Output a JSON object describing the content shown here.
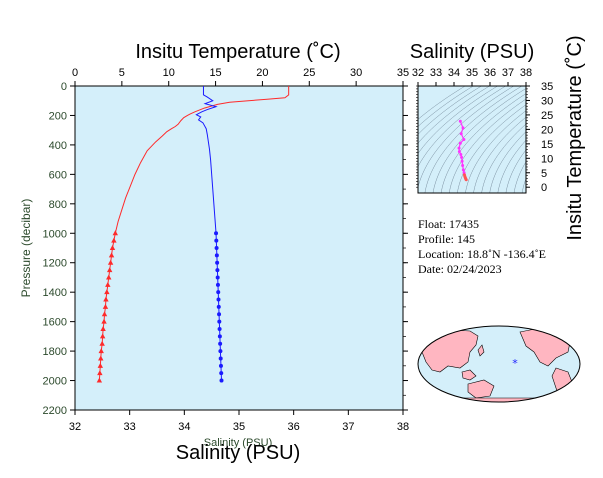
{
  "chart_data": [
    {
      "type": "line",
      "title_top": "Insitu Temperature (˚C)",
      "xlabel_bottom": "Salinity (PSU)",
      "xlabel_bottom_ghost": "Salinity (PSU)",
      "ylabel": "Pressure (decibar)",
      "temperature_axis": {
        "range": [
          0,
          35
        ],
        "ticks": [
          "0",
          "5",
          "10",
          "15",
          "20",
          "25",
          "30",
          "35"
        ]
      },
      "salinity_axis": {
        "range": [
          32,
          38
        ],
        "ticks": [
          "32",
          "33",
          "34",
          "35",
          "36",
          "37",
          "38"
        ]
      },
      "pressure_axis": {
        "range": [
          0,
          2200
        ],
        "ticks": [
          "0",
          "200",
          "400",
          "600",
          "800",
          "1000",
          "1200",
          "1400",
          "1600",
          "1800",
          "2000",
          "2200"
        ],
        "reversed": true
      },
      "series": [
        {
          "color": "#ff2a2a",
          "marker": "triangle",
          "x_axis": "temperature",
          "points": [
            [
              22.8,
              0
            ],
            [
              22.8,
              60
            ],
            [
              22.4,
              80
            ],
            [
              20.5,
              90
            ],
            [
              18.5,
              100
            ],
            [
              16.5,
              110
            ],
            [
              15.2,
              125
            ],
            [
              13.8,
              150
            ],
            [
              12.8,
              175
            ],
            [
              12.3,
              190
            ],
            [
              12.0,
              200
            ],
            [
              11.6,
              215
            ],
            [
              11.3,
              235
            ],
            [
              11.0,
              260
            ],
            [
              10.7,
              275
            ],
            [
              10.3,
              290
            ],
            [
              9.8,
              310
            ],
            [
              9.3,
              340
            ],
            [
              8.6,
              380
            ],
            [
              7.7,
              440
            ],
            [
              7.0,
              520
            ],
            [
              6.4,
              600
            ],
            [
              5.9,
              680
            ],
            [
              5.4,
              760
            ],
            [
              5.0,
              840
            ],
            [
              4.6,
              920
            ],
            [
              4.3,
              1000
            ],
            [
              4.15,
              1050
            ],
            [
              4.0,
              1100
            ],
            [
              3.9,
              1150
            ],
            [
              3.8,
              1200
            ],
            [
              3.7,
              1250
            ],
            [
              3.6,
              1300
            ],
            [
              3.5,
              1350
            ],
            [
              3.4,
              1400
            ],
            [
              3.3,
              1450
            ],
            [
              3.25,
              1500
            ],
            [
              3.15,
              1550
            ],
            [
              3.1,
              1600
            ],
            [
              3.0,
              1650
            ],
            [
              2.95,
              1700
            ],
            [
              2.9,
              1750
            ],
            [
              2.8,
              1800
            ],
            [
              2.75,
              1850
            ],
            [
              2.7,
              1900
            ],
            [
              2.65,
              1950
            ],
            [
              2.6,
              2000
            ]
          ],
          "marker_from_pressure": 1000
        },
        {
          "color": "#1a1aff",
          "marker": "circle",
          "x_axis": "salinity",
          "points": [
            [
              34.35,
              0
            ],
            [
              34.35,
              60
            ],
            [
              34.42,
              75
            ],
            [
              34.52,
              100
            ],
            [
              34.38,
              120
            ],
            [
              34.58,
              140
            ],
            [
              34.42,
              160
            ],
            [
              34.32,
              175
            ],
            [
              34.22,
              195
            ],
            [
              34.3,
              210
            ],
            [
              34.26,
              230
            ],
            [
              34.34,
              250
            ],
            [
              34.4,
              290
            ],
            [
              34.42,
              330
            ],
            [
              34.44,
              380
            ],
            [
              34.46,
              430
            ],
            [
              34.48,
              500
            ],
            [
              34.5,
              600
            ],
            [
              34.52,
              700
            ],
            [
              34.54,
              800
            ],
            [
              34.56,
              900
            ],
            [
              34.58,
              1000
            ],
            [
              34.585,
              1050
            ],
            [
              34.59,
              1100
            ],
            [
              34.595,
              1150
            ],
            [
              34.6,
              1200
            ],
            [
              34.605,
              1250
            ],
            [
              34.61,
              1300
            ],
            [
              34.615,
              1350
            ],
            [
              34.62,
              1400
            ],
            [
              34.625,
              1450
            ],
            [
              34.63,
              1500
            ],
            [
              34.635,
              1550
            ],
            [
              34.64,
              1600
            ],
            [
              34.645,
              1650
            ],
            [
              34.65,
              1700
            ],
            [
              34.655,
              1750
            ],
            [
              34.66,
              1800
            ],
            [
              34.665,
              1850
            ],
            [
              34.67,
              1900
            ],
            [
              34.675,
              1950
            ],
            [
              34.68,
              2000
            ]
          ],
          "marker_from_pressure": 1000
        }
      ]
    },
    {
      "type": "scatter",
      "title": "Salinity (PSU)",
      "ylabel": "Insitu Temperature (˚C)",
      "x_axis": {
        "range": [
          32,
          38
        ],
        "ticks": [
          "32",
          "33",
          "34",
          "35",
          "36",
          "37",
          "38"
        ]
      },
      "y_axis": {
        "range": [
          -2,
          35
        ],
        "ticks": [
          "0",
          "5",
          "10",
          "15",
          "20",
          "25",
          "30",
          "35"
        ]
      },
      "series": [
        {
          "color": "#ff33ff",
          "points": [
            [
              34.35,
              22.8
            ],
            [
              34.5,
              20.5
            ],
            [
              34.4,
              18.5
            ],
            [
              34.55,
              16.5
            ],
            [
              34.35,
              15.2
            ],
            [
              34.28,
              13.5
            ],
            [
              34.3,
              12.3
            ],
            [
              34.38,
              11.3
            ],
            [
              34.42,
              10.3
            ],
            [
              34.45,
              9.0
            ],
            [
              34.48,
              7.5
            ],
            [
              34.52,
              6.0
            ],
            [
              34.56,
              5.0
            ]
          ]
        },
        {
          "color": "#ff5555",
          "points": [
            [
              34.58,
              4.3
            ],
            [
              34.6,
              3.8
            ],
            [
              34.62,
              3.4
            ],
            [
              34.64,
              3.1
            ],
            [
              34.66,
              2.8
            ],
            [
              34.68,
              2.6
            ]
          ]
        }
      ]
    }
  ],
  "info": {
    "float": "Float:  17435",
    "profile": "Profile:  145",
    "location": "Location:  18.8˚N  -136.4˚E",
    "date": "Date:  02/24/2023"
  },
  "map": {
    "marker": {
      "lat": 18.8,
      "lon": -136.4,
      "symbol": "*",
      "color": "#1a1aff"
    },
    "colors": {
      "land": "#ffb6c1",
      "ocean": "#d4effa"
    }
  },
  "colors": {
    "plot_bg": "#d4effa",
    "temperature": "#ff2a2a",
    "salinity": "#1a1aff",
    "ts_upper": "#ff33ff",
    "ts_lower": "#ff5555"
  }
}
